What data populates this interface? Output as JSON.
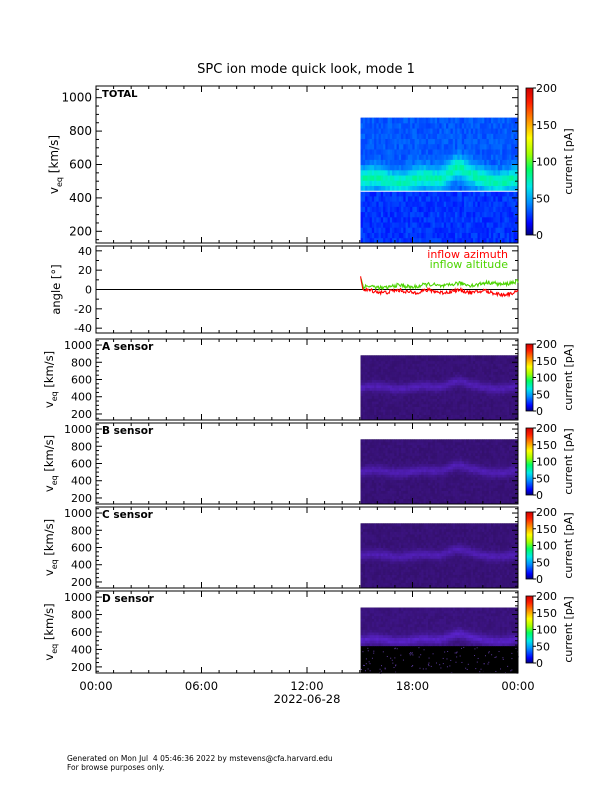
{
  "title": "SPC ion mode quick look, mode 1",
  "footer": {
    "generated": "Generated on Mon Jul  4 05:46:36 2022 by mstevens@cfa.harvard.edu",
    "note": "For browse purposes only."
  },
  "x_axis": {
    "ticks": [
      "00:00",
      "06:00",
      "12:00",
      "18:00",
      "00:00"
    ],
    "date_label": "2022-06-28"
  },
  "chart_data": [
    {
      "type": "heatmap",
      "panel_label": "TOTAL",
      "ylabel": "v_eq [km/s]",
      "ylabel_main": "v",
      "ylabel_sub": "eq",
      "ylabel_unit": "[km/s]",
      "ylim": [
        130,
        1070
      ],
      "yticks": [
        200,
        400,
        600,
        800,
        1000
      ],
      "xlim_hours": [
        0,
        24
      ],
      "data_start_hour": 15.05,
      "v_range": [
        130,
        880
      ],
      "description_peak_velocity": 510,
      "colorbar": {
        "label": "current [pA]",
        "range": [
          0,
          200
        ],
        "ticks": [
          0,
          50,
          100,
          150,
          200
        ]
      }
    },
    {
      "type": "line",
      "ylabel": "angle [°]",
      "ylim": [
        -45,
        45
      ],
      "yticks": [
        -40,
        -20,
        0,
        20,
        40
      ],
      "zero_line": true,
      "series": [
        {
          "name": "inflow azimuth",
          "color": "#ff0000",
          "start_hour": 15.05,
          "end_hour": 24,
          "mean": -2,
          "spike_max": 19
        },
        {
          "name": "inflow altitude",
          "color": "#4cd400",
          "start_hour": 15.05,
          "end_hour": 24,
          "mean": 2,
          "spike_max": 15
        }
      ]
    },
    {
      "type": "heatmap",
      "panel_label": "A sensor",
      "ylabel_main": "v",
      "ylabel_sub": "eq",
      "ylabel_unit": "[km/s]",
      "ylim": [
        130,
        1070
      ],
      "yticks": [
        200,
        400,
        600,
        800,
        1000
      ],
      "data_start_hour": 15.05,
      "v_range": [
        130,
        880
      ],
      "colorbar": {
        "label": "current [pA]",
        "range": [
          0,
          200
        ],
        "ticks": [
          0,
          50,
          100,
          150,
          200
        ]
      }
    },
    {
      "type": "heatmap",
      "panel_label": "B sensor",
      "ylabel_main": "v",
      "ylabel_sub": "eq",
      "ylabel_unit": "[km/s]",
      "ylim": [
        130,
        1070
      ],
      "yticks": [
        200,
        400,
        600,
        800,
        1000
      ],
      "data_start_hour": 15.05,
      "v_range": [
        130,
        880
      ],
      "colorbar": {
        "label": "current [pA]",
        "range": [
          0,
          200
        ],
        "ticks": [
          0,
          50,
          100,
          150,
          200
        ]
      }
    },
    {
      "type": "heatmap",
      "panel_label": "C sensor",
      "ylabel_main": "v",
      "ylabel_sub": "eq",
      "ylabel_unit": "[km/s]",
      "ylim": [
        130,
        1070
      ],
      "yticks": [
        200,
        400,
        600,
        800,
        1000
      ],
      "data_start_hour": 15.05,
      "v_range": [
        130,
        880
      ],
      "colorbar": {
        "label": "current [pA]",
        "range": [
          0,
          200
        ],
        "ticks": [
          0,
          50,
          100,
          150,
          200
        ]
      }
    },
    {
      "type": "heatmap",
      "panel_label": "D sensor",
      "ylabel_main": "v",
      "ylabel_sub": "eq",
      "ylabel_unit": "[km/s]",
      "ylim": [
        130,
        1070
      ],
      "yticks": [
        200,
        400,
        600,
        800,
        1000
      ],
      "data_start_hour": 15.05,
      "v_range": [
        130,
        880
      ],
      "colorbar": {
        "label": "current [pA]",
        "range": [
          0,
          200
        ],
        "ticks": [
          0,
          50,
          100,
          150,
          200
        ]
      }
    }
  ]
}
